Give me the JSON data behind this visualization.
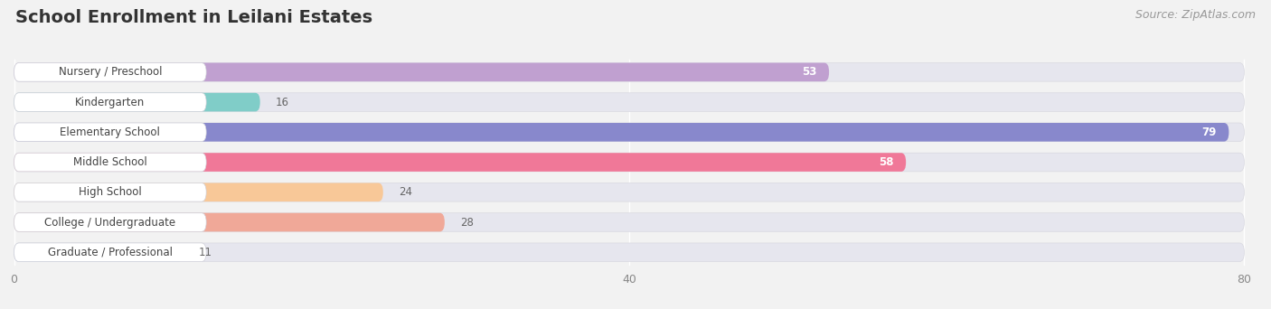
{
  "title": "School Enrollment in Leilani Estates",
  "source": "Source: ZipAtlas.com",
  "categories": [
    "Nursery / Preschool",
    "Kindergarten",
    "Elementary School",
    "Middle School",
    "High School",
    "College / Undergraduate",
    "Graduate / Professional"
  ],
  "values": [
    53,
    16,
    79,
    58,
    24,
    28,
    11
  ],
  "colors": [
    "#c0a0d0",
    "#80cdc8",
    "#8888cc",
    "#f07898",
    "#f8c898",
    "#f0a898",
    "#a8c8e8"
  ],
  "xmax": 80,
  "xticks": [
    0,
    40,
    80
  ],
  "background_color": "#f2f2f2",
  "bar_bg_color": "#e6e6ee",
  "title_fontsize": 14,
  "source_fontsize": 9,
  "label_fontsize": 8.5,
  "value_fontsize": 8.5
}
